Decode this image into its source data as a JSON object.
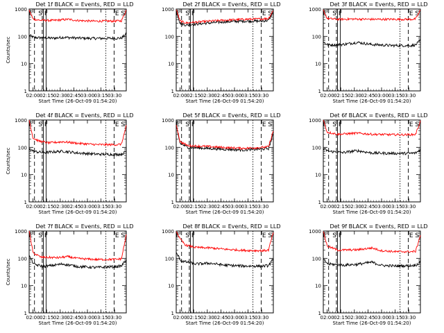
{
  "chart_data": [
    {
      "type": "line",
      "title": "Det 1f BLACK = Events, RED = LLD",
      "ylabel": "Counts/sec",
      "xlabel": "Start Time (26-Oct-09 01:54:20)",
      "xticks": [
        "02:00",
        "02:15",
        "02:30",
        "02:45",
        "03:00",
        "03:15",
        "03:30"
      ],
      "yscale": "log",
      "ylim": [
        1,
        1000
      ],
      "yticks": [
        "1",
        "10",
        "100",
        "1000"
      ],
      "markers": [
        "E",
        "S",
        "F",
        "E",
        "S"
      ],
      "series": [
        {
          "name": "Events",
          "color": "#000000",
          "profile": [
            [
              0,
              110
            ],
            [
              0.05,
              90
            ],
            [
              0.15,
              88
            ],
            [
              0.25,
              85
            ],
            [
              0.35,
              92
            ],
            [
              0.5,
              86
            ],
            [
              0.65,
              84
            ],
            [
              0.8,
              84
            ],
            [
              0.95,
              86
            ],
            [
              1,
              120
            ]
          ]
        },
        {
          "name": "LLD",
          "color": "#ff0000",
          "profile": [
            [
              0,
              900
            ],
            [
              0.04,
              430
            ],
            [
              0.1,
              390
            ],
            [
              0.25,
              380
            ],
            [
              0.4,
              420
            ],
            [
              0.5,
              380
            ],
            [
              0.65,
              360
            ],
            [
              0.85,
              360
            ],
            [
              0.95,
              370
            ],
            [
              1,
              900
            ]
          ]
        }
      ]
    },
    {
      "type": "line",
      "title": "Det 2f BLACK = Events, RED = LLD",
      "ylabel": "",
      "xlabel": "Start Time (26-Oct-09 01:54:20)",
      "xticks": [
        "02:00",
        "02:15",
        "02:30",
        "02:45",
        "03:00",
        "03:15",
        "03:30"
      ],
      "yscale": "log",
      "ylim": [
        1,
        1000
      ],
      "yticks": [
        "1",
        "10",
        "100",
        "1000"
      ],
      "markers": [
        "E",
        "S",
        "F",
        "E",
        "S"
      ],
      "series": [
        {
          "name": "Events",
          "color": "#000000",
          "profile": [
            [
              0,
              900
            ],
            [
              0.04,
              300
            ],
            [
              0.1,
              260
            ],
            [
              0.3,
              300
            ],
            [
              0.5,
              340
            ],
            [
              0.7,
              360
            ],
            [
              0.85,
              360
            ],
            [
              0.95,
              380
            ],
            [
              1,
              800
            ]
          ]
        },
        {
          "name": "LLD",
          "color": "#ff0000",
          "profile": [
            [
              0,
              950
            ],
            [
              0.04,
              360
            ],
            [
              0.1,
              310
            ],
            [
              0.3,
              350
            ],
            [
              0.5,
              390
            ],
            [
              0.7,
              420
            ],
            [
              0.85,
              430
            ],
            [
              0.95,
              450
            ],
            [
              1,
              900
            ]
          ]
        }
      ]
    },
    {
      "type": "line",
      "title": "Det 3f BLACK = Events, RED = LLD",
      "ylabel": "",
      "xlabel": "Start Time (26-Oct-09 01:54:20)",
      "xticks": [
        "02:00",
        "02:15",
        "02:30",
        "02:45",
        "03:00",
        "03:15",
        "03:30"
      ],
      "yscale": "log",
      "ylim": [
        1,
        1000
      ],
      "yticks": [
        "1",
        "10",
        "100",
        "1000"
      ],
      "markers": [
        "E",
        "S",
        "F",
        "E",
        "S"
      ],
      "series": [
        {
          "name": "Events",
          "color": "#000000",
          "profile": [
            [
              0,
              60
            ],
            [
              0.05,
              48
            ],
            [
              0.2,
              50
            ],
            [
              0.35,
              60
            ],
            [
              0.5,
              50
            ],
            [
              0.7,
              46
            ],
            [
              0.9,
              46
            ],
            [
              0.95,
              48
            ],
            [
              1,
              70
            ]
          ]
        },
        {
          "name": "LLD",
          "color": "#ff0000",
          "profile": [
            [
              0,
              900
            ],
            [
              0.04,
              450
            ],
            [
              0.15,
              420
            ],
            [
              0.3,
              430
            ],
            [
              0.5,
              420
            ],
            [
              0.7,
              420
            ],
            [
              0.9,
              420
            ],
            [
              0.95,
              430
            ],
            [
              1,
              900
            ]
          ]
        }
      ]
    },
    {
      "type": "line",
      "title": "Det 4f BLACK = Events, RED = LLD",
      "ylabel": "Counts/sec",
      "xlabel": "Start Time (26-Oct-09 01:54:20)",
      "xticks": [
        "02:00",
        "02:15",
        "02:30",
        "02:45",
        "03:00",
        "03:15",
        "03:30"
      ],
      "yscale": "log",
      "ylim": [
        1,
        1000
      ],
      "yticks": [
        "1",
        "10",
        "100",
        "1000"
      ],
      "markers": [
        "E",
        "S",
        "F",
        "E",
        "S"
      ],
      "series": [
        {
          "name": "Events",
          "color": "#000000",
          "profile": [
            [
              0,
              90
            ],
            [
              0.05,
              70
            ],
            [
              0.15,
              64
            ],
            [
              0.35,
              72
            ],
            [
              0.5,
              62
            ],
            [
              0.7,
              56
            ],
            [
              0.9,
              55
            ],
            [
              0.95,
              56
            ],
            [
              1,
              70
            ]
          ]
        },
        {
          "name": "LLD",
          "color": "#ff0000",
          "profile": [
            [
              0,
              1000
            ],
            [
              0.04,
              220
            ],
            [
              0.1,
              170
            ],
            [
              0.2,
              145
            ],
            [
              0.35,
              160
            ],
            [
              0.5,
              140
            ],
            [
              0.7,
              125
            ],
            [
              0.9,
              125
            ],
            [
              0.95,
              130
            ],
            [
              1,
              600
            ]
          ]
        }
      ]
    },
    {
      "type": "line",
      "title": "Det 5f BLACK = Events, RED = LLD",
      "ylabel": "",
      "xlabel": "Start Time (26-Oct-09 01:54:20)",
      "xticks": [
        "02:00",
        "02:15",
        "02:30",
        "02:45",
        "03:00",
        "03:15",
        "03:30"
      ],
      "yscale": "log",
      "ylim": [
        1,
        1000
      ],
      "yticks": [
        "1",
        "10",
        "100",
        "1000"
      ],
      "markers": [
        "E",
        "S",
        "F",
        "E",
        "S"
      ],
      "series": [
        {
          "name": "Events",
          "color": "#000000",
          "profile": [
            [
              0,
              600
            ],
            [
              0.04,
              140
            ],
            [
              0.12,
              100
            ],
            [
              0.3,
              92
            ],
            [
              0.5,
              85
            ],
            [
              0.7,
              80
            ],
            [
              0.9,
              88
            ],
            [
              0.95,
              90
            ],
            [
              1,
              300
            ]
          ]
        },
        {
          "name": "LLD",
          "color": "#ff0000",
          "profile": [
            [
              0,
              700
            ],
            [
              0.04,
              160
            ],
            [
              0.12,
              115
            ],
            [
              0.3,
              108
            ],
            [
              0.5,
              98
            ],
            [
              0.7,
              92
            ],
            [
              0.9,
              100
            ],
            [
              0.95,
              104
            ],
            [
              1,
              400
            ]
          ]
        }
      ]
    },
    {
      "type": "line",
      "title": "Det 6f BLACK = Events, RED = LLD",
      "ylabel": "",
      "xlabel": "Start Time (26-Oct-09 01:54:20)",
      "xticks": [
        "02:00",
        "02:15",
        "02:30",
        "02:45",
        "03:00",
        "03:15",
        "03:30"
      ],
      "yscale": "log",
      "ylim": [
        1,
        1000
      ],
      "yticks": [
        "1",
        "10",
        "100",
        "1000"
      ],
      "markers": [
        "E",
        "S",
        "F",
        "E",
        "S"
      ],
      "series": [
        {
          "name": "Events",
          "color": "#000000",
          "profile": [
            [
              0,
              90
            ],
            [
              0.05,
              72
            ],
            [
              0.2,
              64
            ],
            [
              0.35,
              75
            ],
            [
              0.5,
              62
            ],
            [
              0.7,
              60
            ],
            [
              0.9,
              60
            ],
            [
              0.95,
              62
            ],
            [
              1,
              80
            ]
          ]
        },
        {
          "name": "LLD",
          "color": "#ff0000",
          "profile": [
            [
              0,
              1000
            ],
            [
              0.04,
              360
            ],
            [
              0.15,
              300
            ],
            [
              0.35,
              330
            ],
            [
              0.5,
              300
            ],
            [
              0.7,
              290
            ],
            [
              0.9,
              290
            ],
            [
              0.95,
              300
            ],
            [
              1,
              900
            ]
          ]
        }
      ]
    },
    {
      "type": "line",
      "title": "Det 7f BLACK = Events, RED = LLD",
      "ylabel": "Counts/sec",
      "xlabel": "Start Time (26-Oct-09 01:54:20)",
      "xticks": [
        "02:00",
        "02:15",
        "02:30",
        "02:45",
        "03:00",
        "03:15",
        "03:30"
      ],
      "yscale": "log",
      "ylim": [
        1,
        1000
      ],
      "yticks": [
        "1",
        "10",
        "100",
        "1000"
      ],
      "markers": [
        "E",
        "S",
        "F",
        "E",
        "S"
      ],
      "series": [
        {
          "name": "Events",
          "color": "#000000",
          "profile": [
            [
              0,
              120
            ],
            [
              0.05,
              60
            ],
            [
              0.15,
              50
            ],
            [
              0.35,
              62
            ],
            [
              0.5,
              50
            ],
            [
              0.7,
              46
            ],
            [
              0.9,
              50
            ],
            [
              0.95,
              52
            ],
            [
              1,
              90
            ]
          ]
        },
        {
          "name": "LLD",
          "color": "#ff0000",
          "profile": [
            [
              0,
              1000
            ],
            [
              0.04,
              160
            ],
            [
              0.12,
              110
            ],
            [
              0.3,
              105
            ],
            [
              0.4,
              115
            ],
            [
              0.5,
              98
            ],
            [
              0.7,
              90
            ],
            [
              0.9,
              92
            ],
            [
              0.95,
              96
            ],
            [
              1,
              700
            ]
          ]
        }
      ]
    },
    {
      "type": "line",
      "title": "Det 8f BLACK = Events, RED = LLD",
      "ylabel": "",
      "xlabel": "Start Time (26-Oct-09 01:54:20)",
      "xticks": [
        "02:00",
        "02:15",
        "02:30",
        "02:45",
        "03:00",
        "03:15",
        "03:30"
      ],
      "yscale": "log",
      "ylim": [
        1,
        1000
      ],
      "yticks": [
        "1",
        "10",
        "100",
        "1000"
      ],
      "markers": [
        "E",
        "S",
        "F",
        "E",
        "S"
      ],
      "series": [
        {
          "name": "Events",
          "color": "#000000",
          "profile": [
            [
              0,
              160
            ],
            [
              0.05,
              80
            ],
            [
              0.2,
              62
            ],
            [
              0.35,
              66
            ],
            [
              0.5,
              56
            ],
            [
              0.7,
              52
            ],
            [
              0.9,
              52
            ],
            [
              0.95,
              54
            ],
            [
              1,
              90
            ]
          ]
        },
        {
          "name": "LLD",
          "color": "#ff0000",
          "profile": [
            [
              0,
              1000
            ],
            [
              0.04,
              500
            ],
            [
              0.1,
              300
            ],
            [
              0.2,
              250
            ],
            [
              0.35,
              240
            ],
            [
              0.5,
              215
            ],
            [
              0.7,
              195
            ],
            [
              0.9,
              190
            ],
            [
              0.95,
              200
            ],
            [
              1,
              900
            ]
          ]
        }
      ]
    },
    {
      "type": "line",
      "title": "Det 9f BLACK = Events, RED = LLD",
      "ylabel": "",
      "xlabel": "Start Time (26-Oct-09 01:54:20)",
      "xticks": [
        "02:00",
        "02:15",
        "02:30",
        "02:45",
        "03:00",
        "03:15",
        "03:30"
      ],
      "yscale": "log",
      "ylim": [
        1,
        1000
      ],
      "yticks": [
        "1",
        "10",
        "100",
        "1000"
      ],
      "markers": [
        "E",
        "S",
        "F",
        "E",
        "S"
      ],
      "series": [
        {
          "name": "Events",
          "color": "#000000",
          "profile": [
            [
              0,
              90
            ],
            [
              0.05,
              62
            ],
            [
              0.2,
              56
            ],
            [
              0.35,
              60
            ],
            [
              0.5,
              72
            ],
            [
              0.6,
              55
            ],
            [
              0.75,
              52
            ],
            [
              0.9,
              54
            ],
            [
              0.95,
              56
            ],
            [
              1,
              70
            ]
          ]
        },
        {
          "name": "LLD",
          "color": "#ff0000",
          "profile": [
            [
              0,
              1000
            ],
            [
              0.04,
              280
            ],
            [
              0.15,
              200
            ],
            [
              0.35,
              205
            ],
            [
              0.5,
              240
            ],
            [
              0.6,
              190
            ],
            [
              0.75,
              175
            ],
            [
              0.9,
              175
            ],
            [
              0.95,
              180
            ],
            [
              1,
              700
            ]
          ]
        }
      ]
    }
  ]
}
